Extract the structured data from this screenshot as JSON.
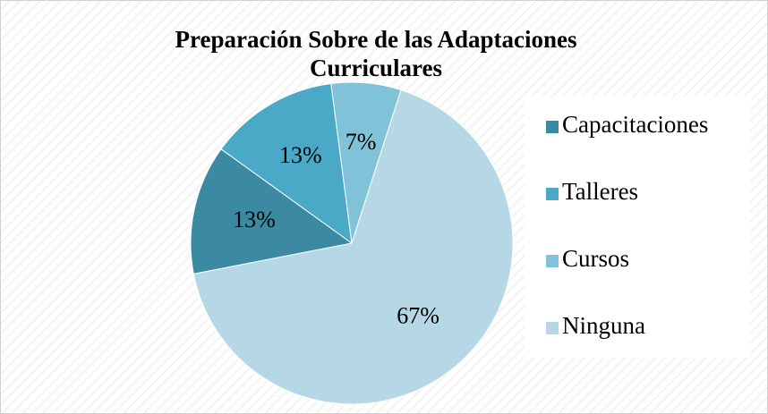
{
  "chart_data": {
    "type": "pie",
    "title": "Preparación Sobre de las Adaptaciones Curriculares",
    "categories": [
      "Capacitaciones",
      "Talleres",
      "Cursos",
      "Ninguna"
    ],
    "values": [
      13,
      13,
      7,
      67
    ],
    "value_labels": [
      "13%",
      "13%",
      "7%",
      "67%"
    ],
    "colors": [
      "#3b8aa1",
      "#4aa9c6",
      "#80c3d8",
      "#b6d8e6"
    ],
    "legend": "right"
  }
}
